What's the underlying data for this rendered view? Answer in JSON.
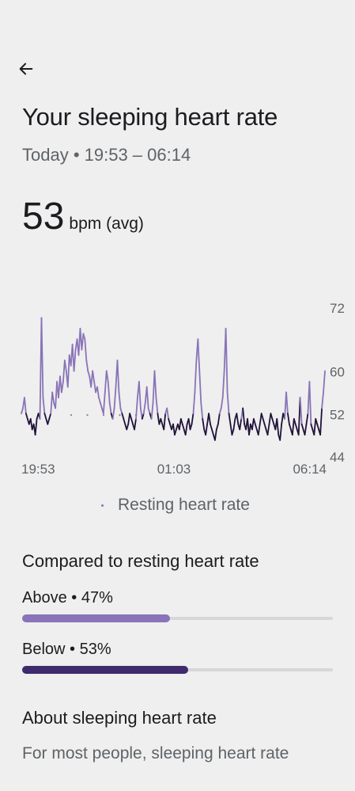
{
  "header": {
    "back_icon": "arrow-left-icon"
  },
  "page": {
    "title": "Your sleeping heart rate",
    "subtitle": "Today • 19:53 – 06:14"
  },
  "summary": {
    "value": "53",
    "unit": "bpm (avg)"
  },
  "chart_data": {
    "type": "line",
    "title": "",
    "x_tick_labels": [
      "19:53",
      "01:03",
      "06:14"
    ],
    "y_tick_labels": [
      "72",
      "60",
      "52",
      "44"
    ],
    "ylim": [
      44,
      72
    ],
    "resting_hr": 52,
    "colors": {
      "above": "#8a73b8",
      "below": "#20123a",
      "resting": "#8a73b8"
    },
    "series": [
      {
        "values": [
          52,
          53,
          55,
          52,
          51,
          50,
          51,
          49,
          50,
          48,
          51,
          52,
          51,
          70,
          55,
          52,
          51,
          50,
          51,
          52,
          56,
          54,
          53,
          58,
          55,
          59,
          56,
          58,
          62,
          60,
          57,
          63,
          61,
          65,
          60,
          64,
          66,
          63,
          68,
          64,
          67,
          66,
          62,
          60,
          59,
          57,
          60,
          58,
          56,
          57,
          55,
          54,
          53,
          52,
          56,
          60,
          58,
          54,
          52,
          51,
          53,
          57,
          62,
          56,
          53,
          52,
          51,
          50,
          49,
          50,
          52,
          51,
          50,
          49,
          51,
          55,
          58,
          53,
          51,
          52,
          54,
          57,
          53,
          52,
          51,
          54,
          60,
          55,
          52,
          50,
          51,
          50,
          49,
          52,
          53,
          51,
          50,
          49,
          50,
          48,
          49,
          50,
          49,
          51,
          50,
          49,
          48,
          50,
          51,
          49,
          50,
          52,
          56,
          62,
          66,
          60,
          54,
          51,
          49,
          48,
          50,
          52,
          50,
          49,
          48,
          47,
          49,
          50,
          52,
          53,
          55,
          60,
          68,
          56,
          52,
          50,
          48,
          49,
          51,
          52,
          50,
          49,
          51,
          53,
          50,
          49,
          51,
          48,
          50,
          49,
          51,
          50,
          49,
          48,
          50,
          52,
          51,
          50,
          49,
          48,
          50,
          52,
          51,
          50,
          49,
          51,
          48,
          47,
          50,
          52,
          51,
          56,
          52,
          50,
          49,
          48,
          51,
          50,
          49,
          48,
          55,
          50,
          49,
          48,
          50,
          52,
          58,
          50,
          49,
          48,
          51,
          50,
          49,
          48,
          53,
          56,
          60
        ]
      }
    ]
  },
  "legend": {
    "label": "Resting heart rate"
  },
  "comparison": {
    "heading": "Compared to resting heart rate",
    "above": {
      "label": "Above • 47%",
      "percent": 47,
      "color": "#8a73b8"
    },
    "below": {
      "label": "Below • 53%",
      "percent": 53,
      "color": "#3f2a6d"
    }
  },
  "about": {
    "heading": "About sleeping heart rate",
    "text": "For most people, sleeping heart rate"
  }
}
